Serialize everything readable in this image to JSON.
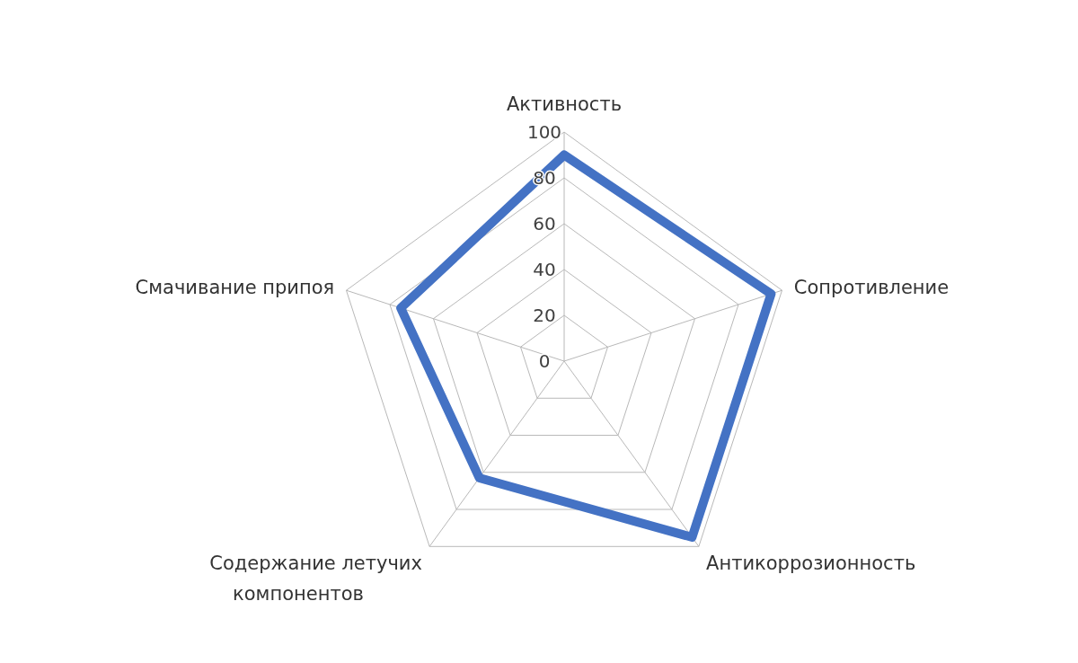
{
  "chart_data": {
    "type": "radar",
    "categories": [
      "Активность",
      "Сопротивление",
      "Антикоррозионность",
      "Содержание летучих компонентов",
      "Смачивание припоя"
    ],
    "series": [
      {
        "color": "#4472c4",
        "values": [
          90,
          95,
          95,
          63,
          75
        ]
      }
    ],
    "ylim": [
      0,
      100
    ],
    "yticks": [
      0,
      20,
      40,
      60,
      80,
      100
    ],
    "grid": true
  }
}
